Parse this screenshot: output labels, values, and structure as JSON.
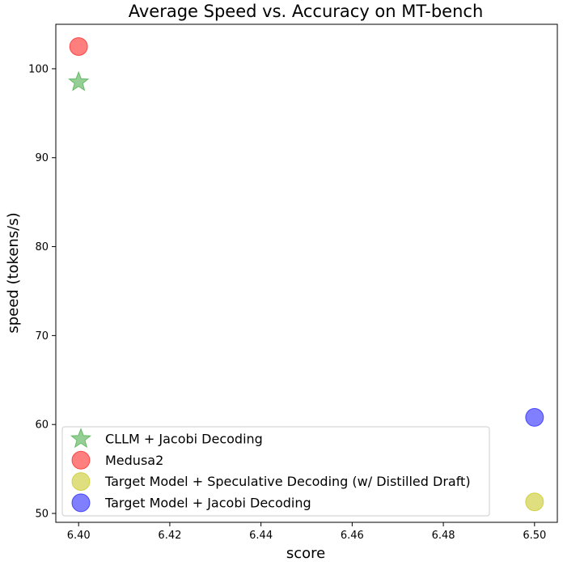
{
  "chart_data": {
    "type": "scatter",
    "title": "Average Speed vs. Accuracy on MT-bench",
    "xlabel": "score",
    "ylabel": "speed (tokens/s)",
    "xlim": [
      6.395,
      6.505
    ],
    "ylim": [
      49,
      105
    ],
    "xticks": [
      6.4,
      6.42,
      6.44,
      6.46,
      6.48,
      6.5
    ],
    "yticks": [
      50,
      60,
      70,
      80,
      90,
      100
    ],
    "grid": false,
    "legend_position": "lower-left",
    "series": [
      {
        "name": "CLLM + Jacobi Decoding",
        "marker": "star",
        "color": "#2ca02c",
        "x": [
          6.4
        ],
        "y": [
          98.5
        ]
      },
      {
        "name": "Medusa2",
        "marker": "circle",
        "color": "#ff0000",
        "x": [
          6.4
        ],
        "y": [
          102.5
        ]
      },
      {
        "name": "Target Model + Speculative Decoding (w/ Distilled Draft)",
        "marker": "circle",
        "color": "#bfbf00",
        "x": [
          6.5
        ],
        "y": [
          51.3
        ]
      },
      {
        "name": "Target Model + Jacobi Decoding",
        "marker": "circle",
        "color": "#0000ff",
        "x": [
          6.5
        ],
        "y": [
          60.8
        ]
      }
    ]
  }
}
